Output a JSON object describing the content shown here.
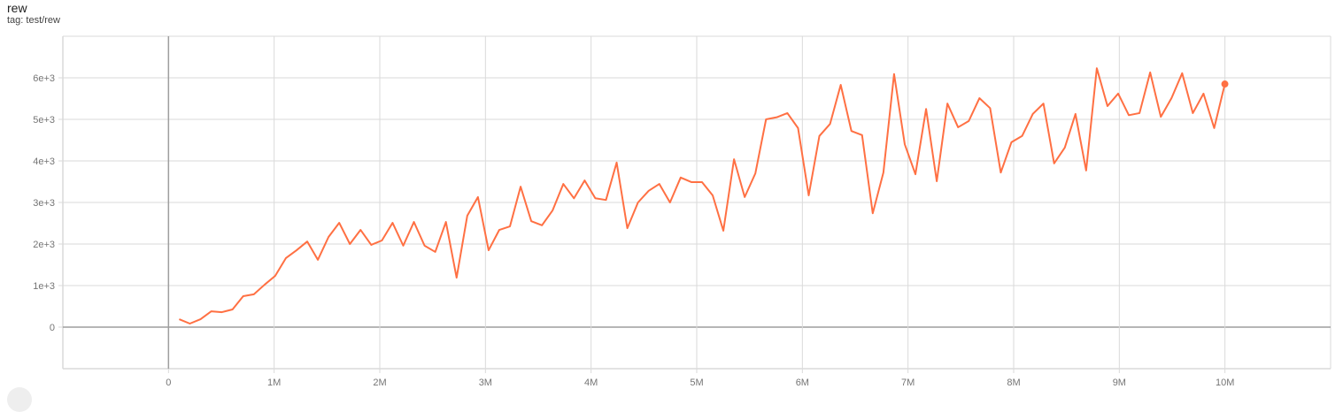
{
  "card": {
    "title": "rew",
    "subtitle": "tag: test/rew"
  },
  "colors": {
    "series": "#ff7043",
    "grid": "#dadada",
    "zero_axis": "#9e9e9e"
  },
  "chart_data": {
    "type": "line",
    "title": "rew",
    "subtitle": "tag: test/rew",
    "xlabel": "",
    "ylabel": "",
    "xlim": [
      -1000000,
      11000000
    ],
    "ylim": [
      -1000,
      7000
    ],
    "grid": true,
    "x_ticks": [
      0,
      1000000,
      2000000,
      3000000,
      4000000,
      5000000,
      6000000,
      7000000,
      8000000,
      9000000,
      10000000
    ],
    "x_tick_labels": [
      "0",
      "1M",
      "2M",
      "3M",
      "4M",
      "5M",
      "6M",
      "7M",
      "8M",
      "9M",
      "10M"
    ],
    "y_ticks": [
      0,
      1000,
      2000,
      3000,
      4000,
      5000,
      6000
    ],
    "y_tick_labels": [
      "0",
      "1e+3",
      "2e+3",
      "3e+3",
      "4e+3",
      "5e+3",
      "6e+3"
    ],
    "x_start": 101000,
    "x_step": 101000,
    "series": [
      {
        "values": [
          190,
          85,
          190,
          380,
          360,
          425,
          745,
          790,
          1020,
          1235,
          1660,
          1850,
          2060,
          1620,
          2170,
          2510,
          2000,
          2340,
          1980,
          2085,
          2510,
          1960,
          2530,
          1960,
          1810,
          2530,
          1190,
          2680,
          3130,
          1850,
          2340,
          2425,
          3380,
          2550,
          2450,
          2810,
          3445,
          3100,
          3530,
          3100,
          3060,
          3960,
          2380,
          3000,
          3280,
          3445,
          3000,
          3600,
          3490,
          3490,
          3170,
          2320,
          4040,
          3130,
          3700,
          5000,
          5050,
          5150,
          4790,
          3170,
          4600,
          4890,
          5830,
          4720,
          4620,
          2740,
          3720,
          6090,
          4400,
          3680,
          5250,
          3510,
          5380,
          4810,
          4960,
          5510,
          5270,
          3720,
          4450,
          4600,
          5130,
          5380,
          3940,
          4320,
          5130,
          3770,
          6230,
          5320,
          5620,
          5100,
          5150,
          6130,
          5060,
          5510,
          6110,
          5150,
          5620,
          4790,
          5850
        ]
      }
    ]
  }
}
